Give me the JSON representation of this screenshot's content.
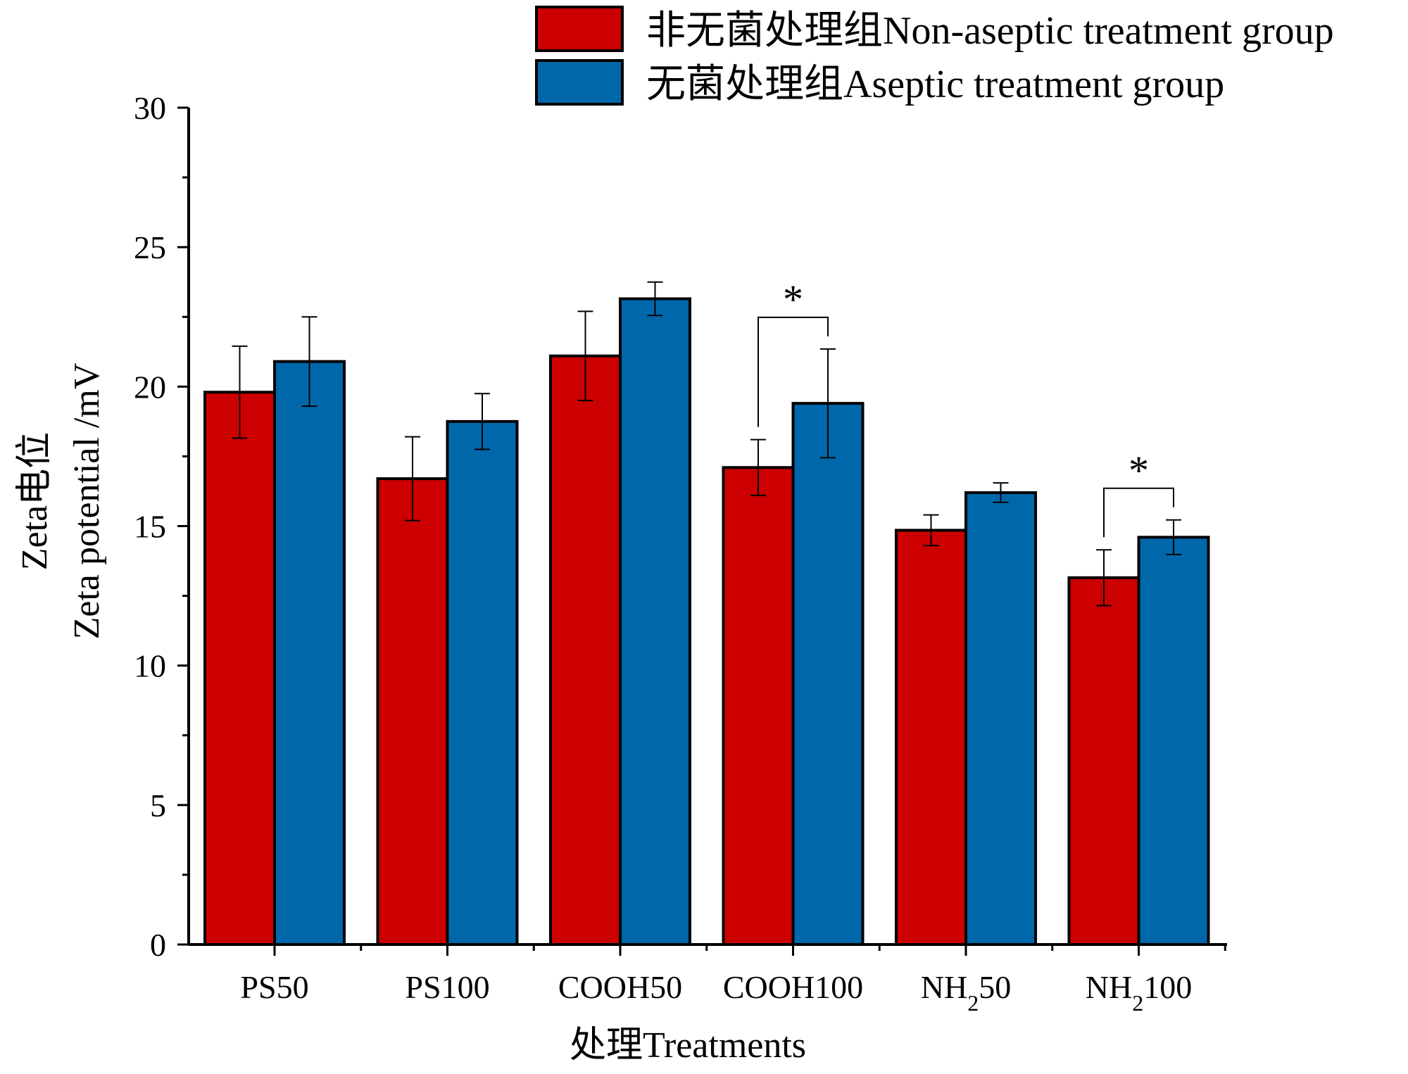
{
  "chart_data": {
    "type": "bar",
    "title": "",
    "xlabel": "处理Treatments",
    "ylabel_cn": "Zeta电位",
    "ylabel_en": "Zeta potential /mV",
    "ylim": [
      0,
      30
    ],
    "yticks": [
      0,
      5,
      10,
      15,
      20,
      25,
      30
    ],
    "categories": [
      {
        "base": "PS50",
        "sub": "",
        "tail": ""
      },
      {
        "base": "PS100",
        "sub": "",
        "tail": ""
      },
      {
        "base": "COOH50",
        "sub": "",
        "tail": ""
      },
      {
        "base": "COOH100",
        "sub": "",
        "tail": ""
      },
      {
        "base": "NH",
        "sub": "2",
        "tail": "50"
      },
      {
        "base": "NH",
        "sub": "2",
        "tail": "100"
      }
    ],
    "series": [
      {
        "name": "非无菌处理组Non-aseptic treatment group",
        "color": "#cc0000",
        "values": [
          19.8,
          16.7,
          21.1,
          17.1,
          14.85,
          13.15
        ],
        "errors": [
          1.65,
          1.5,
          1.6,
          1.0,
          0.55,
          1.0
        ]
      },
      {
        "name": "无菌处理组Aseptic treatment group",
        "color": "#0068aa",
        "values": [
          20.9,
          18.75,
          23.15,
          19.4,
          16.2,
          14.6
        ],
        "errors": [
          1.6,
          1.0,
          0.6,
          1.95,
          0.35,
          0.62
        ]
      }
    ],
    "significance": [
      {
        "category_index": 3,
        "label": "*"
      },
      {
        "category_index": 5,
        "label": "*"
      }
    ],
    "legend_position": "top-right"
  }
}
